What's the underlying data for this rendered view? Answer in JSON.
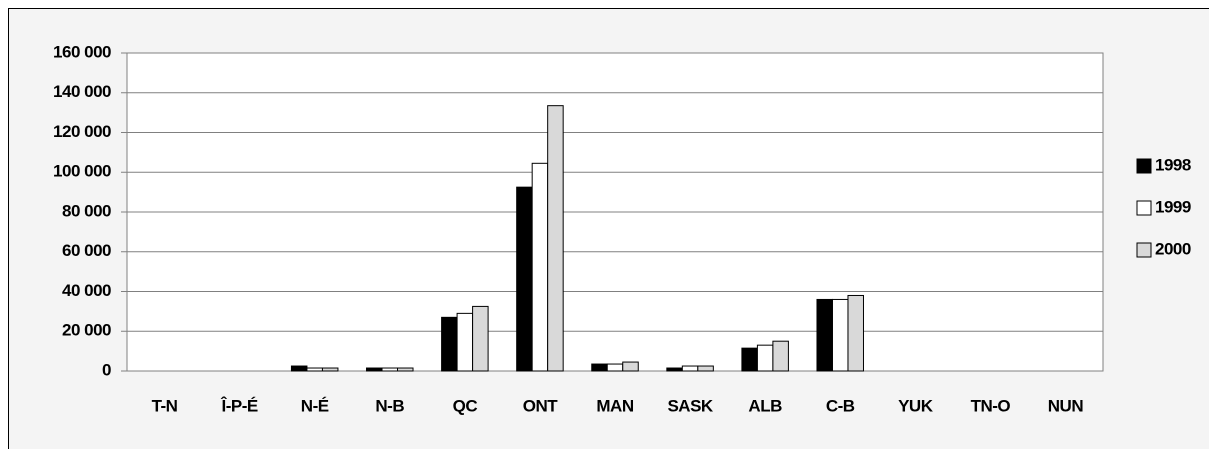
{
  "chart_data": {
    "type": "bar",
    "categories": [
      "T-N",
      "Î-P-É",
      "N-É",
      "N-B",
      "QC",
      "ONT",
      "MAN",
      "SASK",
      "ALB",
      "C-B",
      "YUK",
      "TN-O",
      "NUN"
    ],
    "series": [
      {
        "name": "1998",
        "color": "#000000",
        "values": [
          0,
          0,
          2500,
          1500,
          27000,
          92500,
          3500,
          1500,
          11500,
          36000,
          0,
          0,
          0
        ]
      },
      {
        "name": "1999",
        "color": "#ffffff",
        "values": [
          0,
          0,
          1500,
          1500,
          29000,
          104500,
          3500,
          2500,
          13000,
          36000,
          0,
          0,
          0
        ]
      },
      {
        "name": "2000",
        "color": "#d9d9d9",
        "values": [
          0,
          0,
          1500,
          1500,
          32500,
          133500,
          4500,
          2500,
          15000,
          38000,
          0,
          0,
          0
        ]
      }
    ],
    "ylim": [
      0,
      160000
    ],
    "yticks": [
      0,
      {
        "value": 20000,
        "label": "20 000"
      },
      {
        "value": 40000,
        "label": "40 000"
      },
      {
        "value": 60000,
        "label": "60 000"
      },
      {
        "value": 80000,
        "label": "80 000"
      },
      {
        "value": 100000,
        "label": "100 000"
      },
      {
        "value": 120000,
        "label": "120 000"
      },
      {
        "value": 140000,
        "label": "140 000"
      },
      {
        "value": 160000,
        "label": "160 000"
      }
    ],
    "grid": true,
    "legend": "right"
  }
}
